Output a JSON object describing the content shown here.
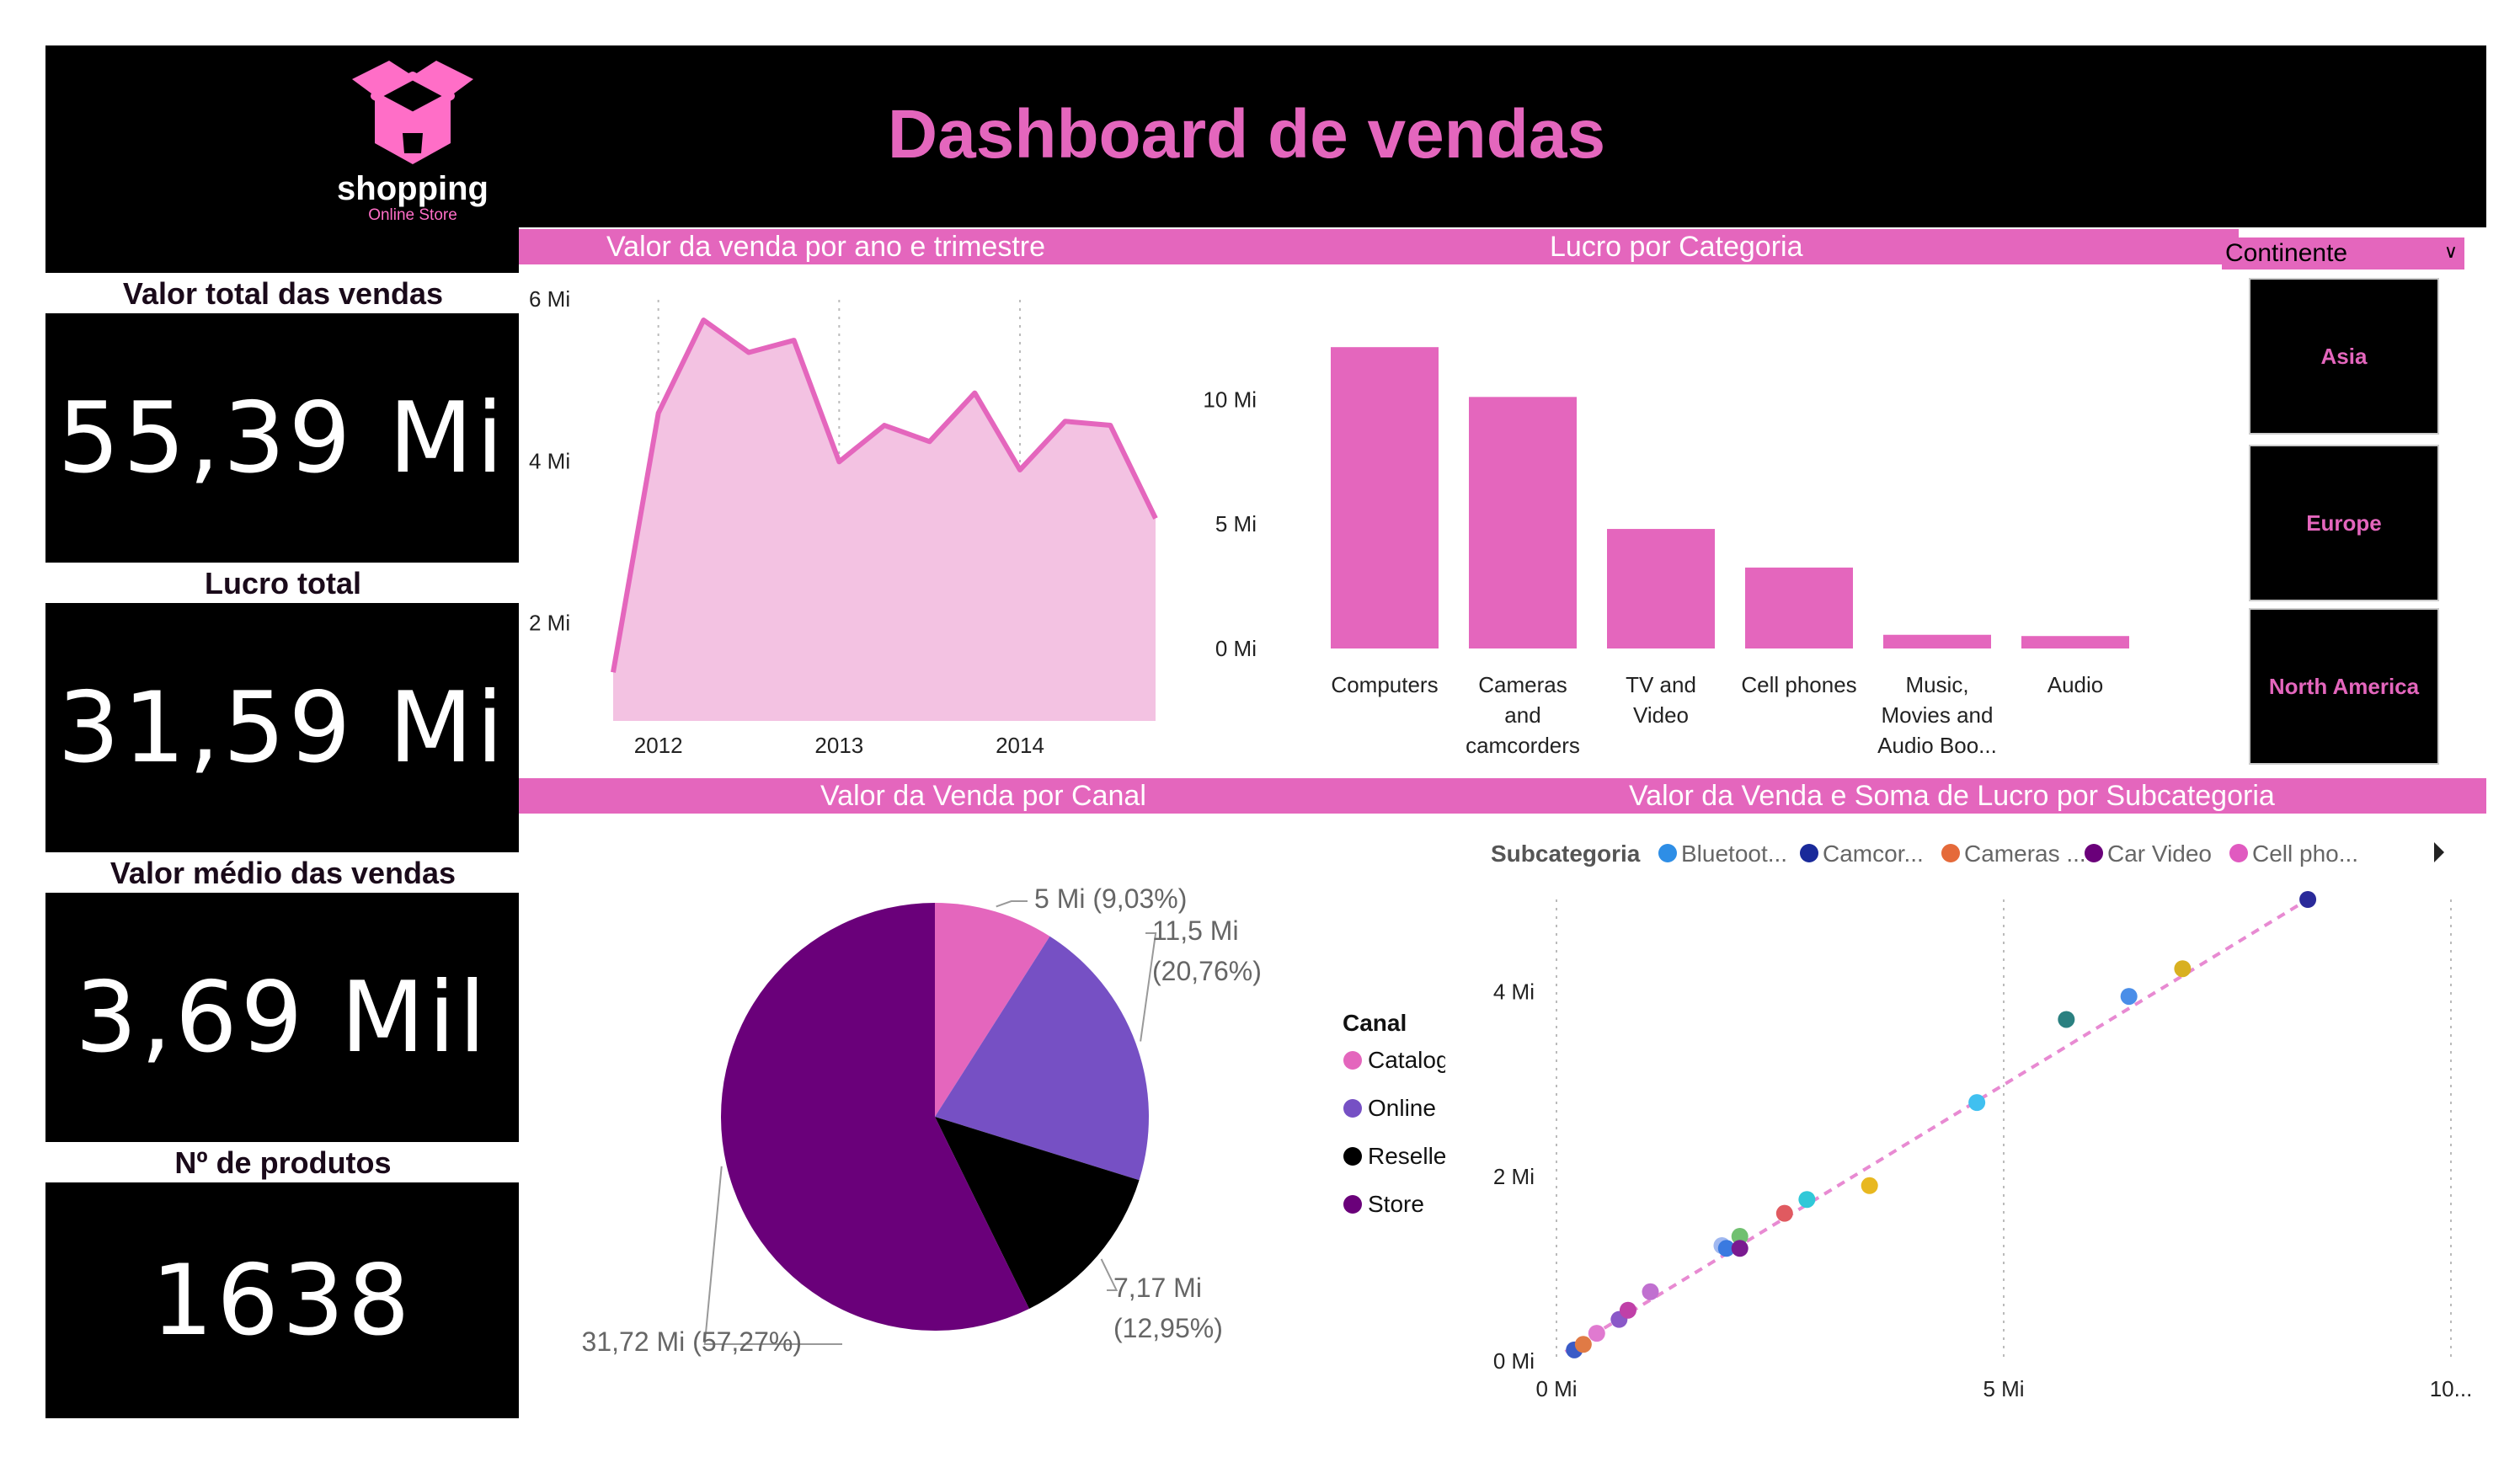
{
  "header": {
    "title": "Dashboard de vendas",
    "logo_name": "shopping",
    "logo_sub": "Online Store"
  },
  "kpis": [
    {
      "label": "Valor total das vendas",
      "value": "55,39 Mi"
    },
    {
      "label": "Lucro total",
      "value": "31,59 Mi"
    },
    {
      "label": "Valor médio das vendas",
      "value": "3,69 Mil"
    },
    {
      "label": "Nº de produtos",
      "value": "1638"
    }
  ],
  "slicer": {
    "label": "Continente",
    "options": [
      "Asia",
      "Europe",
      "North America"
    ]
  },
  "colors": {
    "accent": "#e466bd",
    "area_fill": "#f3c2e2",
    "purple": "#7650c4",
    "store": "#6a007a",
    "black": "#000000"
  },
  "chart_data": [
    {
      "type": "area",
      "title": "Valor da venda por ano e trimestre",
      "x_ticks": [
        "2012",
        "2013",
        "2014"
      ],
      "y_ticks": [
        "2 Mi",
        "4 Mi",
        "6 Mi"
      ],
      "ylim": [
        0.8,
        6
      ],
      "x": [
        "2011 Q4",
        "2012 Q1",
        "2012 Q2",
        "2012 Q3",
        "2012 Q4",
        "2013 Q1",
        "2013 Q2",
        "2013 Q3",
        "2013 Q4",
        "2014 Q1",
        "2014 Q2",
        "2014 Q3",
        "2014 Q4"
      ],
      "values": [
        1.4,
        4.6,
        5.75,
        5.35,
        5.5,
        4.0,
        4.45,
        4.25,
        4.85,
        3.9,
        4.5,
        4.45,
        3.3
      ]
    },
    {
      "type": "bar",
      "title": "Lucro por Categoria",
      "categories": [
        [
          "Computers"
        ],
        [
          "Cameras",
          "and",
          "camcorders"
        ],
        [
          "TV and",
          "Video"
        ],
        [
          "Cell phones"
        ],
        [
          "Music,",
          "Movies and",
          "Audio Boo..."
        ],
        [
          "Audio"
        ]
      ],
      "values": [
        12.1,
        10.1,
        4.8,
        3.25,
        0.55,
        0.5
      ],
      "y_ticks": [
        "0 Mi",
        "5 Mi",
        "10 Mi"
      ],
      "ylim": [
        0,
        14
      ]
    },
    {
      "type": "pie",
      "title": "Valor da Venda por Canal",
      "legend_title": "Canal",
      "slices": [
        {
          "name": "Catalog",
          "value": 5.0,
          "label1": "5 Mi (9,03%)",
          "label2": ""
        },
        {
          "name": "Online",
          "value": 11.5,
          "label1": "11,5 Mi",
          "label2": "(20,76%)"
        },
        {
          "name": "Reseller",
          "value": 7.17,
          "label1": "7,17 Mi",
          "label2": "(12,95%)"
        },
        {
          "name": "Store",
          "value": 31.72,
          "label1": "31,72 Mi (57,27%)",
          "label2": ""
        }
      ]
    },
    {
      "type": "scatter",
      "title": "Valor da Venda e Soma de Lucro por Subcategoria",
      "legend_title": "Subcategoria",
      "legend": [
        "Bluetoot...",
        "Camcor...",
        "Cameras ...",
        "Car Video",
        "Cell pho..."
      ],
      "x_ticks": [
        "0 Mi",
        "5 Mi",
        "10..."
      ],
      "y_ticks": [
        "0 Mi",
        "2 Mi",
        "4 Mi"
      ],
      "xlim": [
        0,
        10
      ],
      "ylim": [
        0,
        5
      ],
      "points": [
        {
          "x": 0.2,
          "y": 0.12,
          "color": "#3a5bc7"
        },
        {
          "x": 0.3,
          "y": 0.18,
          "color": "#e07a45"
        },
        {
          "x": 0.45,
          "y": 0.3,
          "color": "#e07ad0"
        },
        {
          "x": 0.7,
          "y": 0.45,
          "color": "#8a58c8"
        },
        {
          "x": 0.8,
          "y": 0.55,
          "color": "#c040a8"
        },
        {
          "x": 1.05,
          "y": 0.75,
          "color": "#c070d0"
        },
        {
          "x": 1.85,
          "y": 1.25,
          "color": "#a0b8f0"
        },
        {
          "x": 1.9,
          "y": 1.22,
          "color": "#3a7ae0"
        },
        {
          "x": 2.05,
          "y": 1.35,
          "color": "#70c070"
        },
        {
          "x": 2.05,
          "y": 1.22,
          "color": "#7a1a90"
        },
        {
          "x": 2.55,
          "y": 1.6,
          "color": "#e05a60"
        },
        {
          "x": 2.8,
          "y": 1.75,
          "color": "#30c8d8"
        },
        {
          "x": 3.5,
          "y": 1.9,
          "color": "#e8b820"
        },
        {
          "x": 4.7,
          "y": 2.8,
          "color": "#40c0f0"
        },
        {
          "x": 5.7,
          "y": 3.7,
          "color": "#2a8080"
        },
        {
          "x": 6.4,
          "y": 3.95,
          "color": "#4a8ee8"
        },
        {
          "x": 7.0,
          "y": 4.25,
          "color": "#d8b020"
        },
        {
          "x": 8.4,
          "y": 5.0,
          "color": "#2a2a9a"
        }
      ],
      "trend": [
        [
          0.1,
          0.1
        ],
        [
          8.4,
          5.0
        ]
      ]
    }
  ]
}
